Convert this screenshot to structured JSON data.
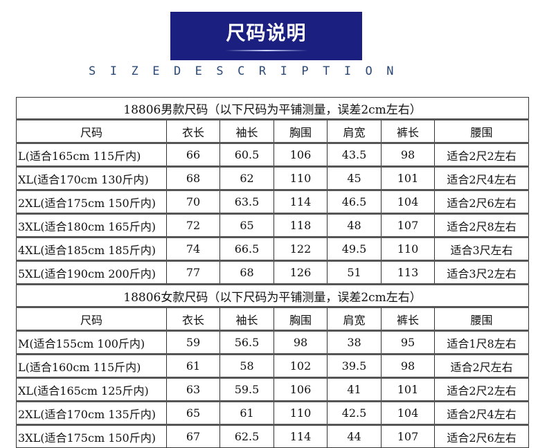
{
  "banner": {
    "title": "尺码说明",
    "subtitle": "SIZEDESCRIPTION",
    "color": "#1b1f7f"
  },
  "columns": [
    "尺码",
    "衣长",
    "袖长",
    "胸围",
    "肩宽",
    "裤长",
    "腰围"
  ],
  "men": {
    "title": "18806男款尺码（以下尺码为平铺测量，误差2cm左右）",
    "rows": [
      [
        "L(适合165cm 115斤内)",
        "66",
        "60.5",
        "106",
        "43.5",
        "98",
        "适合2尺2左右"
      ],
      [
        "XL(适合170cm 130斤内)",
        "68",
        "62",
        "110",
        "45",
        "101",
        "适合2尺4左右"
      ],
      [
        "2XL(适合175cm 150斤内)",
        "70",
        "63.5",
        "114",
        "46.5",
        "104",
        "适合2尺6左右"
      ],
      [
        "3XL(适合180cm 165斤内)",
        "72",
        "65",
        "118",
        "48",
        "107",
        "适合2尺8左右"
      ],
      [
        "4XL(适合185cm 185斤内)",
        "74",
        "66.5",
        "122",
        "49.5",
        "110",
        "适合3尺左右"
      ],
      [
        "5XL(适合190cm 200斤内)",
        "77",
        "68",
        "126",
        "51",
        "113",
        "适合3尺2左右"
      ]
    ]
  },
  "women": {
    "title": "18806女款尺码（以下尺码为平铺测量，误差2cm左右）",
    "rows": [
      [
        "M(适合155cm 100斤内)",
        "59",
        "56.5",
        "98",
        "38",
        "95",
        "适合1尺8左右"
      ],
      [
        "L(适合160cm 115斤内)",
        "61",
        "58",
        "102",
        "39.5",
        "98",
        "适合2尺左右"
      ],
      [
        "XL(适合165cm 125斤内)",
        "63",
        "59.5",
        "106",
        "41",
        "101",
        "适合2尺2左右"
      ],
      [
        "2XL(适合170cm 135斤内)",
        "65",
        "61",
        "110",
        "42.5",
        "104",
        "适合2尺4左右"
      ],
      [
        "3XL(适合175cm 150斤内)",
        "67",
        "62.5",
        "114",
        "44",
        "107",
        "适合2尺6左右"
      ]
    ]
  }
}
